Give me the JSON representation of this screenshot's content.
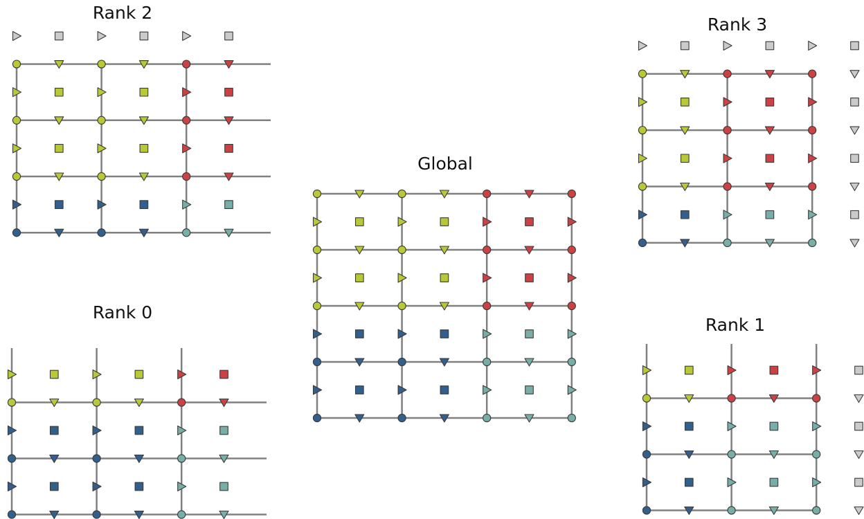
{
  "colors": {
    "yellow": "#b8c837",
    "red": "#cc4244",
    "blue": "#325f8c",
    "teal": "#78aea8",
    "gray": "#c9cbcd",
    "line": "#808080",
    "stroke": "#3a3a3a"
  },
  "panels": {
    "global": {
      "title": "Global",
      "rows": [
        [
          "cy",
          "dy",
          "cy",
          "dy",
          "cr",
          "dr",
          "cr"
        ],
        [
          "ty",
          "sy",
          "ty",
          "sy",
          "tr",
          "sr",
          "tr"
        ],
        [
          "cy",
          "dy",
          "cy",
          "dy",
          "cr",
          "dr",
          "cr"
        ],
        [
          "ty",
          "sy",
          "ty",
          "sy",
          "tr",
          "sr",
          "tr"
        ],
        [
          "cy",
          "dy",
          "cy",
          "dy",
          "cr",
          "dr",
          "cr"
        ],
        [
          "tb",
          "sb",
          "tb",
          "sb",
          "tt",
          "st",
          "tt"
        ],
        [
          "cb",
          "db",
          "cb",
          "db",
          "ct",
          "dt",
          "ct"
        ],
        [
          "tb",
          "sb",
          "tb",
          "sb",
          "tt",
          "st",
          "tt"
        ],
        [
          "cb",
          "db",
          "cb",
          "db",
          "ct",
          "dt",
          "ct"
        ]
      ]
    },
    "rank0": {
      "title": "Rank 0",
      "rows": [
        [
          "ty",
          "sy",
          "ty",
          "sy",
          "tr",
          "sr"
        ],
        [
          "cy",
          "dy",
          "cy",
          "dy",
          "cr",
          "dr"
        ],
        [
          "tb",
          "sb",
          "tb",
          "sb",
          "tt",
          "st"
        ],
        [
          "cb",
          "db",
          "cb",
          "db",
          "ct",
          "dt"
        ],
        [
          "tb",
          "sb",
          "tb",
          "sb",
          "tt",
          "st"
        ],
        [
          "cb",
          "db",
          "cb",
          "db",
          "ct",
          "dt"
        ]
      ]
    },
    "rank1": {
      "title": "Rank 1",
      "rows": [
        [
          "ty",
          "sy",
          "tr",
          "sr",
          "tr",
          "sg"
        ],
        [
          "cy",
          "dy",
          "cr",
          "dr",
          "cr",
          "dg"
        ],
        [
          "tb",
          "sb",
          "tt",
          "st",
          "tt",
          "sg"
        ],
        [
          "cb",
          "db",
          "ct",
          "dt",
          "ct",
          "dg"
        ],
        [
          "tb",
          "sb",
          "tt",
          "st",
          "tt",
          "sg"
        ],
        [
          "cb",
          "db",
          "ct",
          "dt",
          "ct",
          "dg"
        ]
      ]
    },
    "rank2": {
      "title": "Rank 2",
      "rows": [
        [
          "tg",
          "sg",
          "tg",
          "sg",
          "tg",
          "sg"
        ],
        [
          "cy",
          "dy",
          "cy",
          "dy",
          "cr",
          "dr"
        ],
        [
          "ty",
          "sy",
          "ty",
          "sy",
          "tr",
          "sr"
        ],
        [
          "cy",
          "dy",
          "cy",
          "dy",
          "cr",
          "dr"
        ],
        [
          "ty",
          "sy",
          "ty",
          "sy",
          "tr",
          "sr"
        ],
        [
          "cy",
          "dy",
          "cy",
          "dy",
          "cr",
          "dr"
        ],
        [
          "tb",
          "sb",
          "tb",
          "sb",
          "tt",
          "st"
        ],
        [
          "cb",
          "db",
          "cb",
          "db",
          "ct",
          "dt"
        ]
      ]
    },
    "rank3": {
      "title": "Rank 3",
      "rows": [
        [
          "tg",
          "sg",
          "tg",
          "sg",
          "tg",
          "sg"
        ],
        [
          "cy",
          "dy",
          "cr",
          "dr",
          "cr",
          "dg"
        ],
        [
          "ty",
          "sy",
          "tr",
          "sr",
          "tr",
          "sg"
        ],
        [
          "cy",
          "dy",
          "cr",
          "dr",
          "cr",
          "dg"
        ],
        [
          "ty",
          "sy",
          "tr",
          "sr",
          "tr",
          "sg"
        ],
        [
          "cy",
          "dy",
          "cr",
          "dr",
          "cr",
          "dg"
        ],
        [
          "tb",
          "sb",
          "tt",
          "st",
          "tt",
          "sg"
        ],
        [
          "cb",
          "db",
          "ct",
          "dt",
          "ct",
          "dg"
        ]
      ]
    }
  }
}
